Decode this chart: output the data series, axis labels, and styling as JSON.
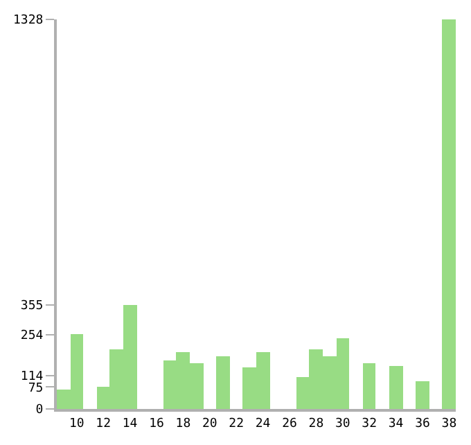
{
  "chart_data": {
    "type": "bar",
    "categories": [
      null,
      "10",
      null,
      "12",
      null,
      "14",
      null,
      "16",
      null,
      "18",
      null,
      "20",
      null,
      "22",
      null,
      "24",
      null,
      "26",
      null,
      "28",
      null,
      "30",
      null,
      "32",
      null,
      "34",
      null,
      "36",
      null,
      "38"
    ],
    "values": [
      68,
      254,
      0,
      75,
      204,
      355,
      0,
      0,
      164,
      194,
      158,
      0,
      178,
      0,
      140,
      194,
      0,
      0,
      109,
      204,
      180,
      243,
      0,
      154,
      0,
      145,
      0,
      96,
      0,
      1328
    ],
    "color": "#98dc84",
    "ylim": [
      0,
      1328
    ],
    "yticks": [
      0,
      75,
      114,
      254,
      355,
      1328
    ]
  }
}
